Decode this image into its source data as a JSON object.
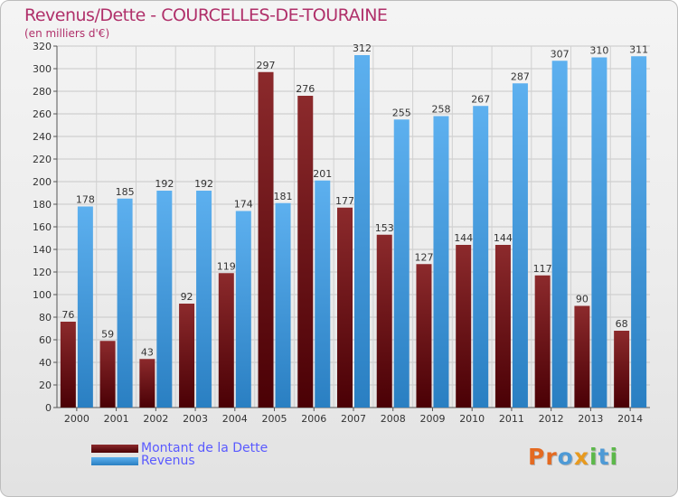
{
  "chart_data": {
    "type": "bar",
    "title": "Revenus/Dette - COURCELLES-DE-TOURAINE",
    "subtitle": "(en milliers d'€)",
    "xlabel": "",
    "ylabel": "",
    "ylim": [
      0,
      320
    ],
    "yticks": [
      "0",
      "20",
      "40",
      "60",
      "80",
      "100",
      "120",
      "140",
      "160",
      "180",
      "200",
      "220",
      "240",
      "260",
      "280",
      "300",
      "320"
    ],
    "grid": true,
    "legend_position": "bottom-left",
    "categories": [
      "2000",
      "2001",
      "2002",
      "2003",
      "2004",
      "2005",
      "2006",
      "2007",
      "2008",
      "2009",
      "2010",
      "2011",
      "2012",
      "2013",
      "2014"
    ],
    "series": [
      {
        "name": "Montant de la Dette",
        "color": "#7a1418",
        "values": [
          76,
          59,
          43,
          92,
          119,
          297,
          276,
          177,
          153,
          127,
          144,
          144,
          117,
          90,
          68
        ],
        "labels": [
          "76",
          "59",
          "43",
          "92",
          "119",
          "297",
          "276",
          "177",
          "153",
          "127",
          "144",
          "144",
          "117",
          "90",
          "68"
        ]
      },
      {
        "name": "Revenus",
        "color": "#4aa3e8",
        "values": [
          178,
          185,
          192,
          192,
          174,
          181,
          201,
          312,
          255,
          258,
          267,
          287,
          307,
          310,
          311
        ],
        "labels": [
          "178",
          "185",
          "192",
          "192",
          "174",
          "181",
          "201",
          "312",
          "255",
          "258",
          "267",
          "287",
          "307",
          "310",
          "311"
        ]
      }
    ]
  },
  "logo": {
    "letters": [
      {
        "ch": "P",
        "color": "#e46a21"
      },
      {
        "ch": "r",
        "color": "#e46a21"
      },
      {
        "ch": "o",
        "color": "#4e9ad6"
      },
      {
        "ch": "x",
        "color": "#e89a1e"
      },
      {
        "ch": "i",
        "color": "#5cb84a"
      },
      {
        "ch": "t",
        "color": "#4e9ad6"
      },
      {
        "ch": "i",
        "color": "#5cb84a"
      }
    ]
  }
}
